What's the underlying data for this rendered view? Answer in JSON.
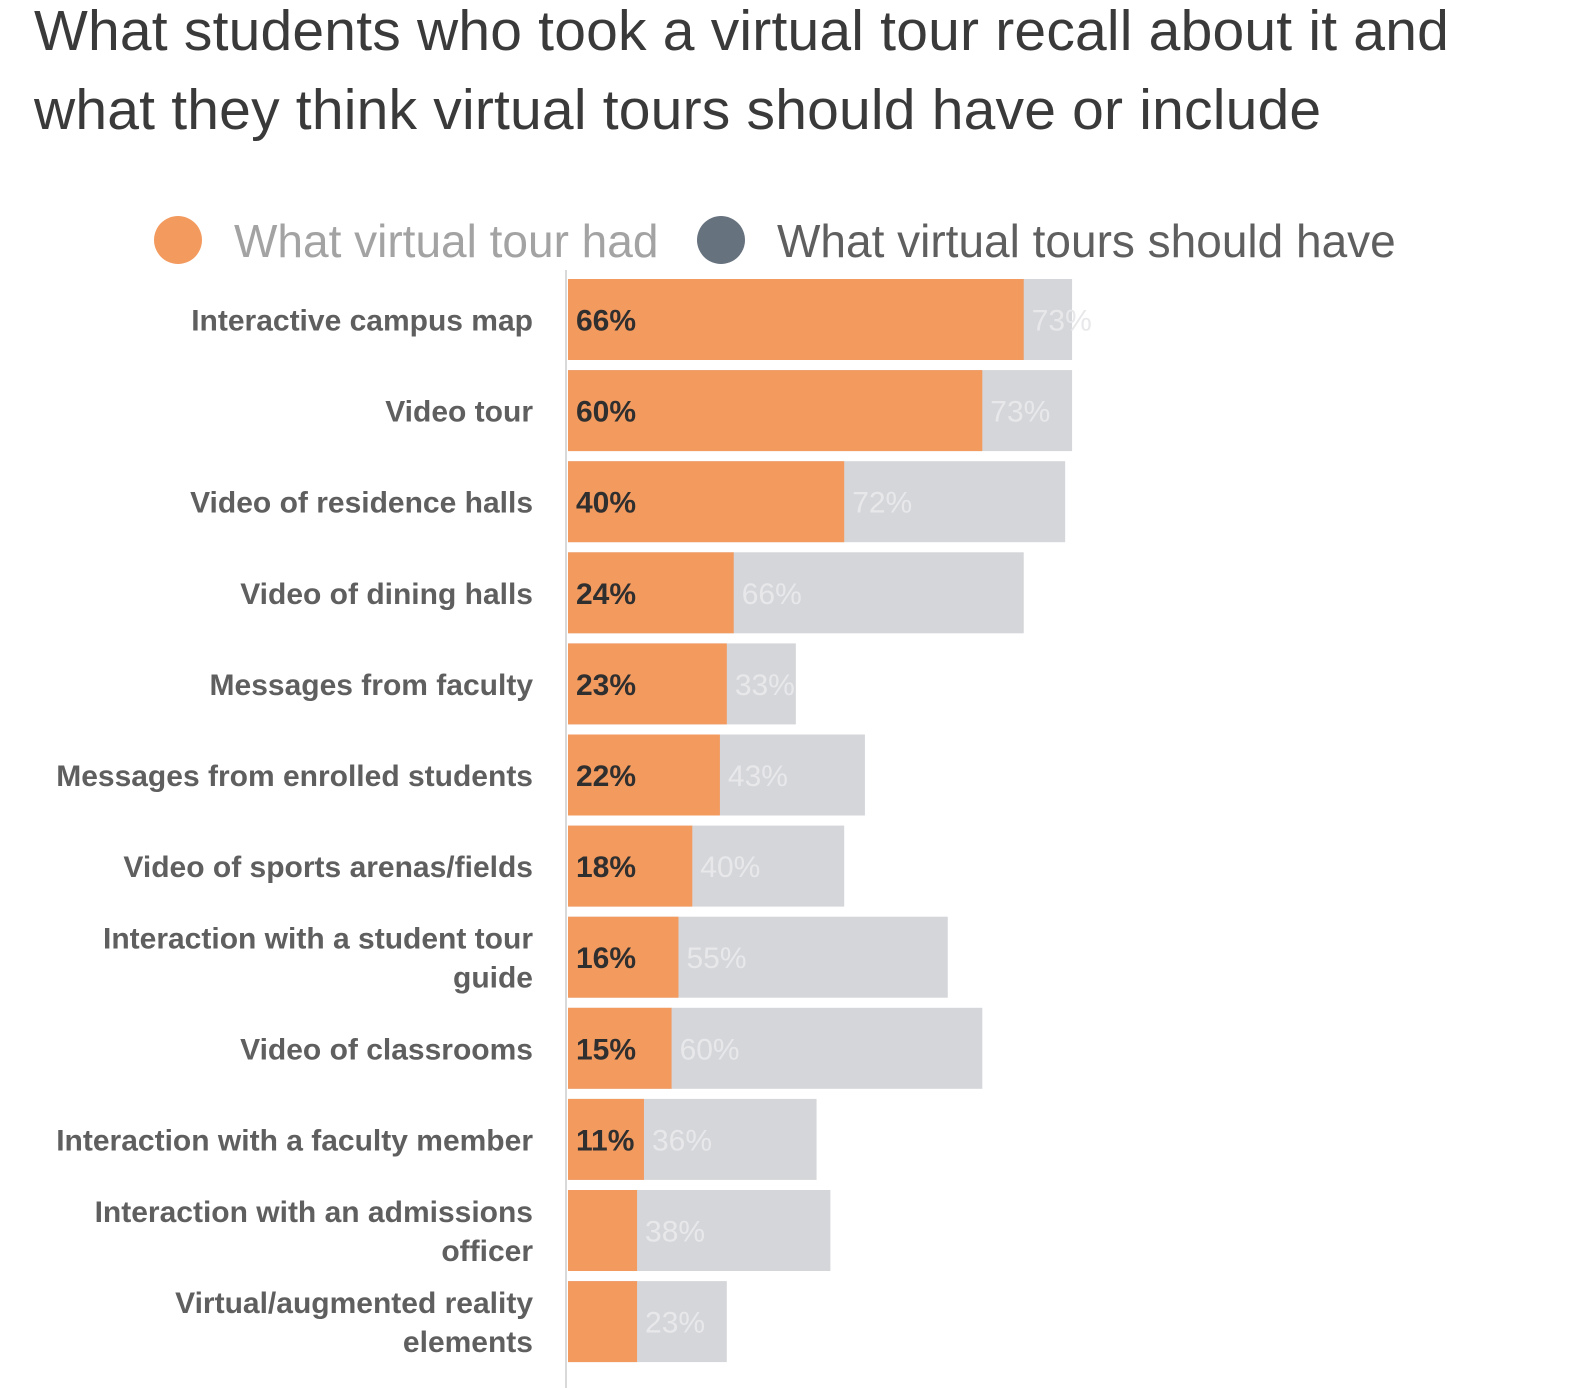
{
  "colors": {
    "had": "#f39a5f",
    "should": "#d4d6d9",
    "legend_should_dot": "#67727f",
    "legend_had_text": "#a3a3a3",
    "legend_should_text": "#5f5f5f",
    "axis_line": "#d9d9d9"
  },
  "chart_data": {
    "type": "bar",
    "orientation": "horizontal",
    "title": "What students who took a virtual tour recall about it and\nwhat they think virtual tours should have or include",
    "legend": {
      "position": "top",
      "items": [
        "What virtual tour had",
        "What virtual tours should have"
      ]
    },
    "categories": [
      "Interactive campus map",
      "Video tour",
      "Video of residence halls",
      "Video of dining halls",
      "Messages from faculty",
      "Messages from enrolled students",
      "Video of sports arenas/fields",
      "Interaction with a student tour guide",
      "Video of classrooms",
      "Interaction with a faculty member",
      "Interaction with an admissions officer",
      "Virtual/augmented reality elements"
    ],
    "series": [
      {
        "name": "What virtual tour had",
        "values": [
          66,
          60,
          40,
          24,
          23,
          22,
          18,
          16,
          15,
          11,
          10,
          10
        ],
        "labels": [
          "66%",
          "60%",
          "40%",
          "24%",
          "23%",
          "22%",
          "18%",
          "16%",
          "15%",
          "11%",
          "",
          ""
        ]
      },
      {
        "name": "What virtual tours should have",
        "values": [
          73,
          73,
          72,
          66,
          33,
          43,
          40,
          55,
          60,
          36,
          38,
          23
        ],
        "labels": [
          "73%",
          "73%",
          "72%",
          "66%",
          "33%",
          "43%",
          "40%",
          "55%",
          "60%",
          "36%",
          "38%",
          "23%"
        ]
      }
    ],
    "stacked": true,
    "unit": "%"
  }
}
